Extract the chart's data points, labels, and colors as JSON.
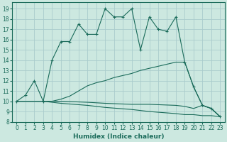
{
  "xlabel": "Humidex (Indice chaleur)",
  "background_color": "#cce8e0",
  "grid_color": "#aacccc",
  "line_color": "#1a6b5a",
  "xlim": [
    -0.5,
    23.5
  ],
  "ylim": [
    8,
    19.6
  ],
  "yticks": [
    8,
    9,
    10,
    11,
    12,
    13,
    14,
    15,
    16,
    17,
    18,
    19
  ],
  "xticks": [
    0,
    1,
    2,
    3,
    4,
    5,
    6,
    7,
    8,
    9,
    10,
    11,
    12,
    13,
    14,
    15,
    16,
    17,
    18,
    19,
    20,
    21,
    22,
    23
  ],
  "curves": [
    {
      "x": [
        0,
        1,
        2,
        3,
        4,
        5,
        6,
        7,
        8,
        9,
        10,
        11,
        12,
        13,
        14,
        15,
        16,
        17,
        18,
        19,
        20,
        21,
        22,
        23
      ],
      "y": [
        10,
        10.6,
        12,
        10,
        14,
        15.8,
        15.8,
        17.5,
        16.5,
        16.5,
        19,
        18.2,
        18.2,
        19,
        15,
        18.2,
        17,
        16.8,
        18.2,
        13.8,
        11.4,
        9.6,
        9.3,
        8.5
      ],
      "marker": true
    },
    {
      "x": [
        0,
        3,
        4,
        5,
        6,
        7,
        8,
        9,
        10,
        11,
        12,
        13,
        14,
        15,
        16,
        17,
        18,
        19,
        20,
        21,
        22,
        23
      ],
      "y": [
        10,
        10,
        10,
        10.2,
        10.5,
        11.0,
        11.5,
        11.8,
        12.0,
        12.3,
        12.5,
        12.7,
        13.0,
        13.2,
        13.4,
        13.6,
        13.8,
        13.8,
        11.4,
        9.6,
        9.3,
        8.5
      ],
      "marker": false
    },
    {
      "x": [
        0,
        3,
        5,
        8,
        10,
        13,
        15,
        18,
        19,
        20,
        21,
        22,
        23
      ],
      "y": [
        10,
        10,
        10,
        9.9,
        9.8,
        9.7,
        9.7,
        9.6,
        9.5,
        9.3,
        9.6,
        9.3,
        8.5
      ],
      "marker": false
    },
    {
      "x": [
        0,
        3,
        5,
        8,
        10,
        13,
        15,
        18,
        19,
        20,
        21,
        22,
        23
      ],
      "y": [
        10,
        10,
        9.8,
        9.6,
        9.4,
        9.2,
        9.0,
        8.8,
        8.7,
        8.7,
        8.6,
        8.6,
        8.5
      ],
      "marker": false
    }
  ]
}
